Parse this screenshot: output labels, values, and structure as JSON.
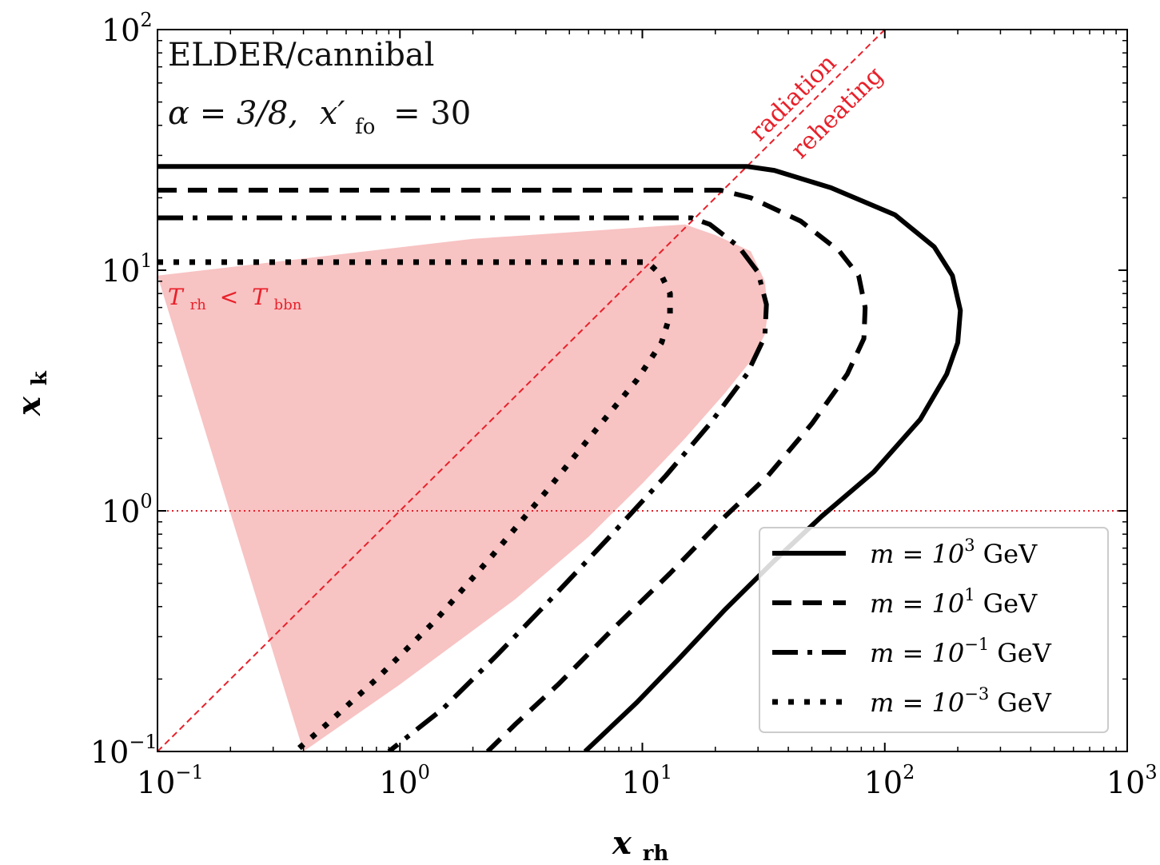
{
  "chart_data": {
    "type": "line",
    "xlabel": "x",
    "xlabel_sub": "rh",
    "ylabel": "x",
    "ylabel_sub": "k",
    "x_scale": "log",
    "y_scale": "log",
    "xlim": [
      0.1,
      1000
    ],
    "ylim": [
      0.1,
      100
    ],
    "x_ticks": [
      {
        "value": 0.1,
        "base": "10",
        "exp": "−1"
      },
      {
        "value": 1,
        "base": "10",
        "exp": "0"
      },
      {
        "value": 10,
        "base": "10",
        "exp": "1"
      },
      {
        "value": 100,
        "base": "10",
        "exp": "2"
      },
      {
        "value": 1000,
        "base": "10",
        "exp": "3"
      }
    ],
    "y_ticks": [
      {
        "value": 0.1,
        "base": "10",
        "exp": "−1"
      },
      {
        "value": 1,
        "base": "10",
        "exp": "0"
      },
      {
        "value": 10,
        "base": "10",
        "exp": "1"
      },
      {
        "value": 100,
        "base": "10",
        "exp": "2"
      }
    ],
    "grid": false,
    "annotations": {
      "line1": "ELDER/cannibal",
      "line2_alpha": "α = 3/8,",
      "line2_x": "x′",
      "line2_x_sub": "fo",
      "line2_value": "= 30",
      "radiation": "radiation",
      "reheating": "reheating",
      "bbn_T": "T",
      "bbn_T_sub": "rh",
      "bbn_lt": "<",
      "bbn_T2": "T",
      "bbn_T2_sub": "bbn"
    },
    "reference_lines": [
      {
        "kind": "diagonal",
        "style": "dashed",
        "color": "#e8202a",
        "x": [
          0.1,
          1000
        ],
        "y": [
          0.1,
          1000
        ]
      },
      {
        "kind": "horizontal",
        "style": "dotted",
        "color": "#e8202a",
        "y": 1
      }
    ],
    "shaded_region": {
      "label": "T_rh < T_bbn",
      "color": "#f8c3c3",
      "x": [
        0.1,
        0.1,
        0.4,
        1.0,
        3.0,
        6.0,
        10.0,
        15.0,
        22.0,
        28.0,
        32.0,
        33.0,
        32.0,
        28.0,
        20.0,
        15.0,
        2.0,
        0.1
      ],
      "y": [
        0.1,
        9.5,
        0.1,
        0.19,
        0.43,
        0.78,
        1.3,
        2.0,
        3.1,
        4.2,
        5.4,
        6.7,
        9.0,
        12.0,
        14.0,
        15.5,
        13.5,
        9.5
      ]
    },
    "series": [
      {
        "name": "m = 10³ GeV",
        "legend_base": "m = 10",
        "legend_exp": "3",
        "legend_unit": "GeV",
        "style": "solid",
        "x": [
          0.1,
          27.0,
          35.0,
          60.0,
          110.0,
          160.0,
          190.0,
          205.0,
          200.0,
          180.0,
          140.0,
          90.0,
          55.0,
          35.0,
          22.0,
          14.0,
          9.5,
          5.8
        ],
        "y": [
          27.0,
          27.0,
          26.0,
          22.0,
          17.0,
          12.5,
          9.5,
          6.8,
          5.0,
          3.7,
          2.4,
          1.45,
          0.95,
          0.62,
          0.39,
          0.24,
          0.16,
          0.1
        ]
      },
      {
        "name": "m = 10¹ GeV",
        "legend_base": "m = 10",
        "legend_exp": "1",
        "legend_unit": "GeV",
        "style": "dashed",
        "x": [
          0.1,
          21.0,
          28.0,
          45.0,
          65.0,
          78.0,
          83.0,
          82.0,
          70.0,
          50.0,
          33.0,
          22.0,
          13.0,
          7.5,
          4.5,
          3.0,
          2.3
        ],
        "y": [
          21.5,
          21.5,
          20.0,
          16.0,
          12.0,
          9.5,
          7.0,
          5.2,
          3.7,
          2.3,
          1.4,
          0.95,
          0.55,
          0.32,
          0.19,
          0.13,
          0.1
        ]
      },
      {
        "name": "m = 10⁻¹ GeV",
        "legend_base": "m = 10",
        "legend_exp": "−1",
        "legend_unit": "GeV",
        "style": "dashdot",
        "x": [
          0.1,
          16.0,
          19.0,
          25.0,
          30.0,
          32.5,
          32.0,
          27.0,
          19.0,
          12.5,
          7.5,
          4.2,
          2.5,
          1.5,
          0.9
        ],
        "y": [
          16.5,
          16.5,
          15.5,
          12.5,
          9.8,
          7.2,
          5.3,
          3.7,
          2.3,
          1.4,
          0.8,
          0.43,
          0.25,
          0.15,
          0.1
        ]
      },
      {
        "name": "m = 10⁻³ GeV",
        "legend_base": "m = 10",
        "legend_exp": "−3",
        "legend_unit": "GeV",
        "style": "dotted",
        "x": [
          0.1,
          10.5,
          12.0,
          13.0,
          13.0,
          12.0,
          9.5,
          6.5,
          4.0,
          2.4,
          1.4,
          0.8,
          0.5,
          0.37
        ],
        "y": [
          10.8,
          10.8,
          9.5,
          8.0,
          6.5,
          5.0,
          3.5,
          2.2,
          1.2,
          0.65,
          0.35,
          0.2,
          0.13,
          0.1
        ]
      }
    ],
    "legend_position": "lower-right"
  }
}
